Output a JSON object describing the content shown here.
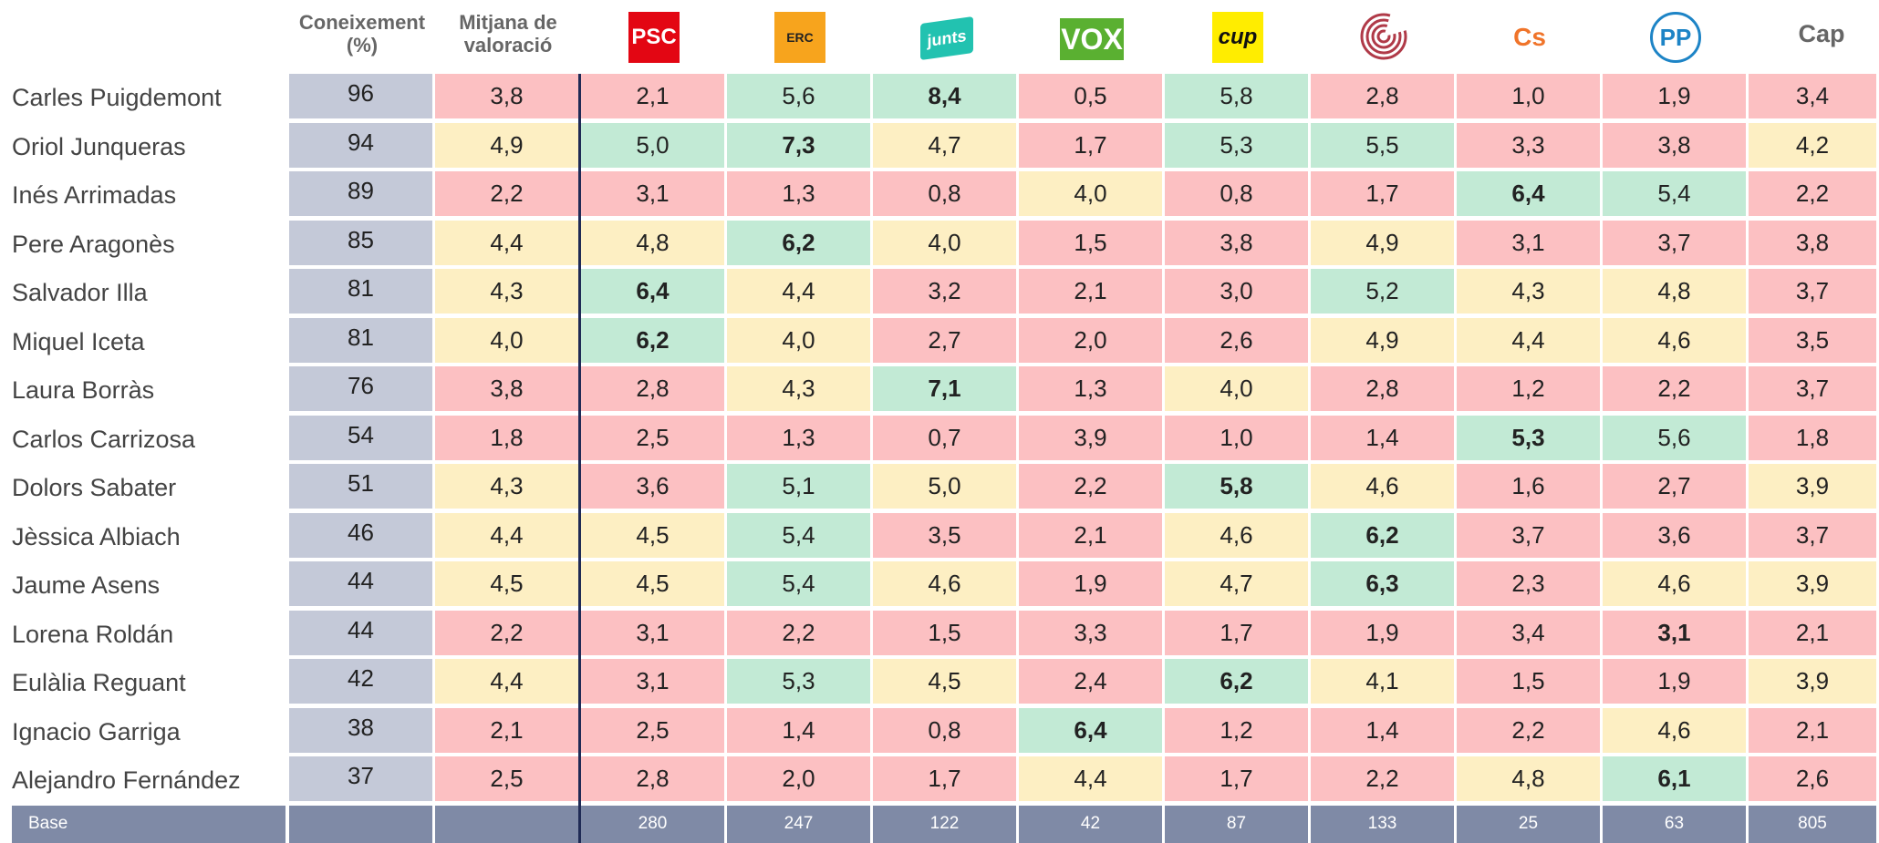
{
  "columns": [
    {
      "lines": [
        "Coneixement",
        "(%)"
      ]
    },
    {
      "lines": [
        "Mitjana de",
        "valoració"
      ]
    },
    {
      "logo": "PSC",
      "color": "#e30613"
    },
    {
      "logo": "ERC",
      "color": "#f7a41d"
    },
    {
      "logo": "junts",
      "color": "#22c2b0"
    },
    {
      "logo": "VOX",
      "color": "#5ab031"
    },
    {
      "logo": "cup",
      "color": "#ffed00"
    },
    {
      "logo": null,
      "color": "#b03a48"
    },
    {
      "logo": "Cs",
      "color": "#f0742a"
    },
    {
      "logo": "PP",
      "color": "#1d84c6"
    },
    {
      "lines": [
        "Cap"
      ]
    }
  ],
  "rows": [
    {
      "name": "Carles Puigdemont",
      "cells": [
        "96",
        "3,8",
        "2,1",
        "5,6",
        "8,4",
        "0,5",
        "5,8",
        "2,8",
        "1,0",
        "1,9",
        "3,4"
      ],
      "colors": [
        "r",
        "r",
        "g",
        "g",
        "r",
        "g",
        "r",
        "r",
        "r",
        "r"
      ],
      "bold": 4
    },
    {
      "name": "Oriol Junqueras",
      "cells": [
        "94",
        "4,9",
        "5,0",
        "7,3",
        "4,7",
        "1,7",
        "5,3",
        "5,5",
        "3,3",
        "3,8",
        "4,2"
      ],
      "colors": [
        "y",
        "g",
        "g",
        "y",
        "r",
        "g",
        "g",
        "r",
        "r",
        "y"
      ],
      "bold": 3
    },
    {
      "name": "Inés Arrimadas",
      "cells": [
        "89",
        "2,2",
        "3,1",
        "1,3",
        "0,8",
        "4,0",
        "0,8",
        "1,7",
        "6,4",
        "5,4",
        "2,2"
      ],
      "colors": [
        "r",
        "r",
        "r",
        "r",
        "y",
        "r",
        "r",
        "g",
        "g",
        "r"
      ],
      "bold": 8
    },
    {
      "name": "Pere Aragonès",
      "cells": [
        "85",
        "4,4",
        "4,8",
        "6,2",
        "4,0",
        "1,5",
        "3,8",
        "4,9",
        "3,1",
        "3,7",
        "3,8"
      ],
      "colors": [
        "y",
        "y",
        "g",
        "y",
        "r",
        "r",
        "y",
        "r",
        "r",
        "r"
      ],
      "bold": 3
    },
    {
      "name": "Salvador Illa",
      "cells": [
        "81",
        "4,3",
        "6,4",
        "4,4",
        "3,2",
        "2,1",
        "3,0",
        "5,2",
        "4,3",
        "4,8",
        "3,7"
      ],
      "colors": [
        "y",
        "g",
        "y",
        "r",
        "r",
        "r",
        "g",
        "y",
        "y",
        "r"
      ],
      "bold": 2
    },
    {
      "name": "Miquel Iceta",
      "cells": [
        "81",
        "4,0",
        "6,2",
        "4,0",
        "2,7",
        "2,0",
        "2,6",
        "4,9",
        "4,4",
        "4,6",
        "3,5"
      ],
      "colors": [
        "y",
        "g",
        "y",
        "r",
        "r",
        "r",
        "y",
        "y",
        "y",
        "r"
      ],
      "bold": 2
    },
    {
      "name": "Laura Borràs",
      "cells": [
        "76",
        "3,8",
        "2,8",
        "4,3",
        "7,1",
        "1,3",
        "4,0",
        "2,8",
        "1,2",
        "2,2",
        "3,7"
      ],
      "colors": [
        "r",
        "r",
        "y",
        "g",
        "r",
        "y",
        "r",
        "r",
        "r",
        "r"
      ],
      "bold": 4
    },
    {
      "name": "Carlos Carrizosa",
      "cells": [
        "54",
        "1,8",
        "2,5",
        "1,3",
        "0,7",
        "3,9",
        "1,0",
        "1,4",
        "5,3",
        "5,6",
        "1,8"
      ],
      "colors": [
        "r",
        "r",
        "r",
        "r",
        "r",
        "r",
        "r",
        "g",
        "g",
        "r"
      ],
      "bold": 8
    },
    {
      "name": "Dolors Sabater",
      "cells": [
        "51",
        "4,3",
        "3,6",
        "5,1",
        "5,0",
        "2,2",
        "5,8",
        "4,6",
        "1,6",
        "2,7",
        "3,9"
      ],
      "colors": [
        "y",
        "r",
        "g",
        "y",
        "r",
        "g",
        "y",
        "r",
        "r",
        "y"
      ],
      "bold": 6
    },
    {
      "name": "Jèssica Albiach",
      "cells": [
        "46",
        "4,4",
        "4,5",
        "5,4",
        "3,5",
        "2,1",
        "4,6",
        "6,2",
        "3,7",
        "3,6",
        "3,7"
      ],
      "colors": [
        "y",
        "y",
        "g",
        "r",
        "r",
        "y",
        "g",
        "r",
        "r",
        "r"
      ],
      "bold": 7
    },
    {
      "name": "Jaume Asens",
      "cells": [
        "44",
        "4,5",
        "4,5",
        "5,4",
        "4,6",
        "1,9",
        "4,7",
        "6,3",
        "2,3",
        "4,6",
        "3,9"
      ],
      "colors": [
        "y",
        "y",
        "g",
        "y",
        "r",
        "y",
        "g",
        "r",
        "y",
        "y"
      ],
      "bold": 7
    },
    {
      "name": "Lorena Roldán",
      "cells": [
        "44",
        "2,2",
        "3,1",
        "2,2",
        "1,5",
        "3,3",
        "1,7",
        "1,9",
        "3,4",
        "3,1",
        "2,1"
      ],
      "colors": [
        "r",
        "r",
        "r",
        "r",
        "r",
        "r",
        "r",
        "r",
        "r",
        "r"
      ],
      "bold": 9
    },
    {
      "name": "Eulàlia Reguant",
      "cells": [
        "42",
        "4,4",
        "3,1",
        "5,3",
        "4,5",
        "2,4",
        "6,2",
        "4,1",
        "1,5",
        "1,9",
        "3,9"
      ],
      "colors": [
        "y",
        "r",
        "g",
        "y",
        "r",
        "g",
        "y",
        "r",
        "r",
        "y"
      ],
      "bold": 6
    },
    {
      "name": "Ignacio Garriga",
      "cells": [
        "38",
        "2,1",
        "2,5",
        "1,4",
        "0,8",
        "6,4",
        "1,2",
        "1,4",
        "2,2",
        "4,6",
        "2,1"
      ],
      "colors": [
        "r",
        "r",
        "r",
        "r",
        "g",
        "r",
        "r",
        "r",
        "y",
        "r"
      ],
      "bold": 5
    },
    {
      "name": "Alejandro Fernández",
      "cells": [
        "37",
        "2,5",
        "2,8",
        "2,0",
        "1,7",
        "4,4",
        "1,7",
        "2,2",
        "4,8",
        "6,1",
        "2,6"
      ],
      "colors": [
        "r",
        "r",
        "r",
        "r",
        "y",
        "r",
        "r",
        "y",
        "g",
        "r"
      ],
      "bold": 9
    }
  ],
  "base": {
    "label": "Base",
    "values": [
      "280",
      "247",
      "122",
      "42",
      "87",
      "133",
      "25",
      "63",
      "805"
    ]
  }
}
